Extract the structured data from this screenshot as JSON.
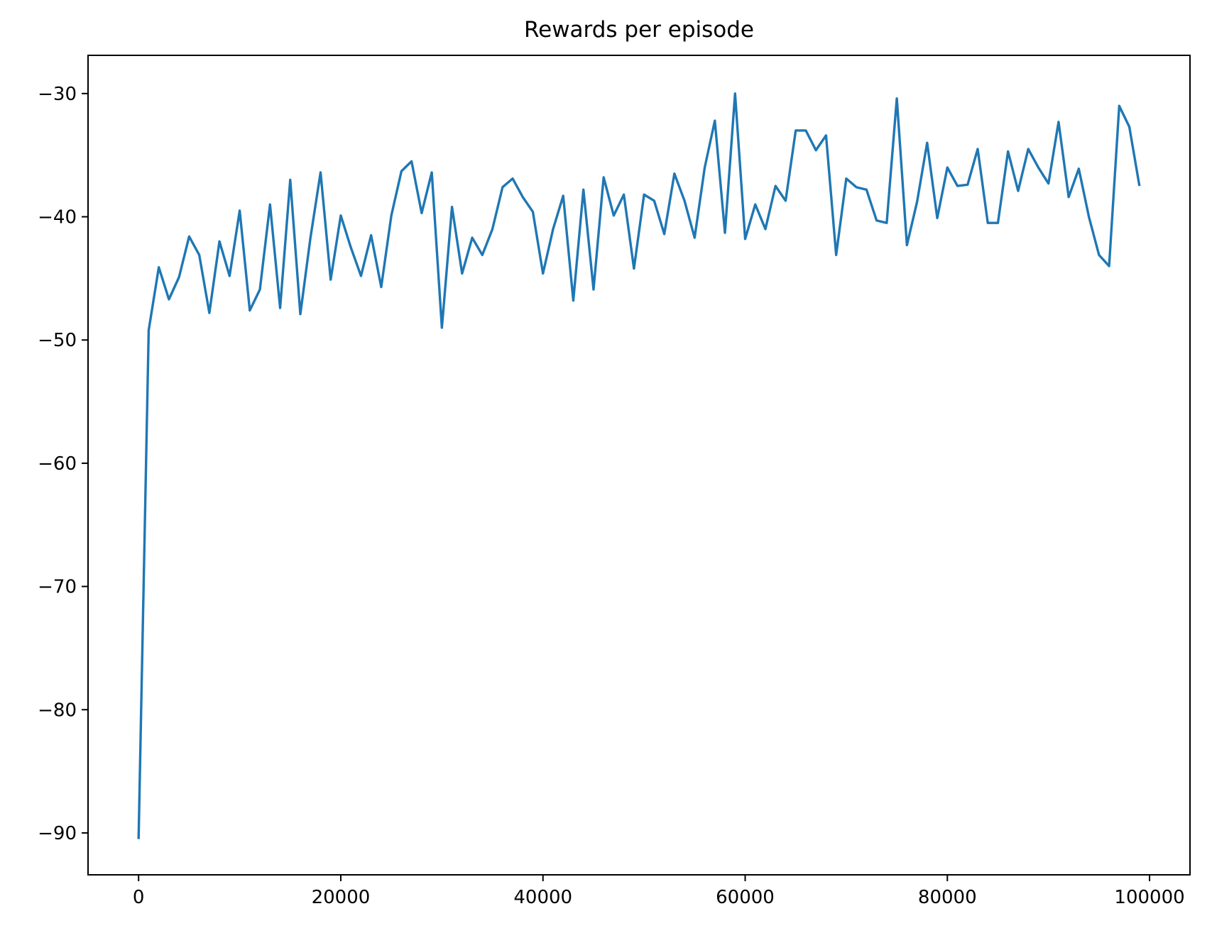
{
  "chart_data": {
    "type": "line",
    "title": "Rewards per episode",
    "xlabel": "",
    "ylabel": "",
    "xlim": [
      -5000,
      104000
    ],
    "ylim": [
      -93.4,
      -26.9
    ],
    "xticks": [
      0,
      20000,
      40000,
      60000,
      80000,
      100000
    ],
    "xtick_labels": [
      "0",
      "20000",
      "40000",
      "60000",
      "80000",
      "100000"
    ],
    "yticks": [
      -90,
      -80,
      -70,
      -60,
      -50,
      -40,
      -30
    ],
    "ytick_labels": [
      "−90",
      "−80",
      "−70",
      "−60",
      "−50",
      "−40",
      "−30"
    ],
    "grid": false,
    "legend": "none",
    "series": [
      {
        "color": "#1f77b4",
        "x": [
          0,
          1000,
          2000,
          3000,
          4000,
          5000,
          6000,
          7000,
          8000,
          9000,
          10000,
          11000,
          12000,
          13000,
          14000,
          15000,
          16000,
          17000,
          18000,
          19000,
          20000,
          21000,
          22000,
          23000,
          24000,
          25000,
          26000,
          27000,
          28000,
          29000,
          30000,
          31000,
          32000,
          33000,
          34000,
          35000,
          36000,
          37000,
          38000,
          39000,
          40000,
          41000,
          42000,
          43000,
          44000,
          45000,
          46000,
          47000,
          48000,
          49000,
          50000,
          51000,
          52000,
          53000,
          54000,
          55000,
          56000,
          57000,
          58000,
          59000,
          60000,
          61000,
          62000,
          63000,
          64000,
          65000,
          66000,
          67000,
          68000,
          69000,
          70000,
          71000,
          72000,
          73000,
          74000,
          75000,
          76000,
          77000,
          78000,
          79000,
          80000,
          81000,
          82000,
          83000,
          84000,
          85000,
          86000,
          87000,
          88000,
          89000,
          90000,
          91000,
          92000,
          93000,
          94000,
          95000,
          96000,
          97000,
          98000,
          99000
        ],
        "values": [
          -90.5,
          -49.2,
          -44.1,
          -46.7,
          -44.9,
          -41.6,
          -43.1,
          -47.8,
          -42.0,
          -44.8,
          -39.5,
          -47.6,
          -45.9,
          -39.0,
          -47.4,
          -37.0,
          -47.9,
          -41.7,
          -36.4,
          -45.1,
          -39.9,
          -42.5,
          -44.8,
          -41.5,
          -45.7,
          -39.9,
          -36.3,
          -35.5,
          -39.7,
          -36.4,
          -49.0,
          -39.2,
          -44.6,
          -41.7,
          -43.1,
          -41.0,
          -37.6,
          -36.9,
          -38.4,
          -39.6,
          -44.6,
          -41.0,
          -38.3,
          -46.8,
          -37.8,
          -45.9,
          -36.8,
          -39.9,
          -38.2,
          -44.2,
          -38.2,
          -38.7,
          -41.4,
          -36.5,
          -38.7,
          -41.7,
          -36.0,
          -32.2,
          -41.3,
          -30.0,
          -41.8,
          -39.0,
          -41.0,
          -37.5,
          -38.7,
          -33.0,
          -33.0,
          -34.6,
          -33.4,
          -43.1,
          -36.9,
          -37.6,
          -37.8,
          -40.3,
          -40.5,
          -30.4,
          -42.3,
          -38.8,
          -34.0,
          -40.1,
          -36.0,
          -37.5,
          -37.4,
          -34.5,
          -40.5,
          -40.5,
          -34.7,
          -37.9,
          -34.5,
          -36.0,
          -37.3,
          -32.3,
          -38.4,
          -36.1,
          -40.0,
          -43.1,
          -44.0,
          -31.0,
          -32.7,
          -37.5
        ]
      }
    ]
  }
}
